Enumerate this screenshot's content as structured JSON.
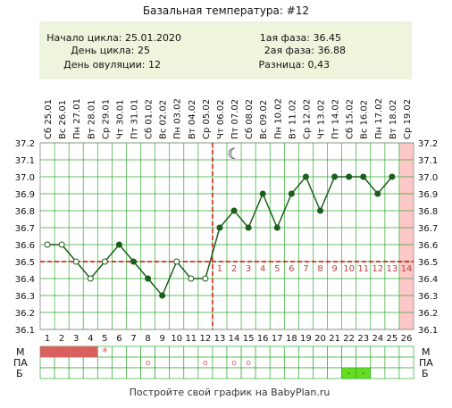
{
  "title": "Базальная температура: #12",
  "info": {
    "cycle_start": "Начало цикла: 25.01.2020",
    "cycle_day": "День цикла: 25",
    "ovulation_day": "День овуляции: 12",
    "phase1": "1ая фаза: 36.45",
    "phase2": "2ая фаза: 36.88",
    "difference": "Разница: 0,43"
  },
  "footer": "Постройте свой график на BabyPlan.ru",
  "side_labels": {
    "m": "М",
    "pa": "ПА",
    "b": "Б"
  },
  "moon_symbol": "☾",
  "colors": {
    "line": "#1a5e1a",
    "threshold": "#dd0000",
    "grid": "#33aa33",
    "info_bg": "#eef5dc",
    "pink": "#ffc8c8",
    "menses": "#d96060",
    "marker": "#d96060",
    "b_green": "#66dd22"
  },
  "chart_data": {
    "type": "line",
    "title": "Базальная температура: #12",
    "categories": [
      "Сб 25.01",
      "Вс 26.01",
      "Пн 27.01",
      "Вт 28.01",
      "Ср 29.01",
      "Чт 30.01",
      "Пт 31.01",
      "Сб 01.02",
      "Вс 02.02",
      "Пн 03.02",
      "Вт 04.02",
      "Ср 05.02",
      "Чт 06.02",
      "Пт 07.02",
      "Сб 08.02",
      "Вс 09.02",
      "Пн 10.02",
      "Вт 11.02",
      "Ср 12.02",
      "Чт 13.02",
      "Пт 14.02",
      "Сб 15.02",
      "Вс 16.02",
      "Пн 17.02",
      "Вт 18.02",
      "Ср 19.02"
    ],
    "day_numbers": [
      1,
      2,
      3,
      4,
      5,
      6,
      7,
      8,
      9,
      10,
      11,
      12,
      13,
      14,
      15,
      16,
      17,
      18,
      19,
      20,
      21,
      22,
      23,
      24,
      25,
      26
    ],
    "values": [
      36.6,
      36.6,
      36.5,
      36.4,
      36.5,
      36.6,
      36.5,
      36.4,
      36.3,
      36.5,
      36.4,
      36.4,
      36.7,
      36.8,
      36.7,
      36.9,
      36.7,
      36.9,
      37.0,
      36.8,
      37.0,
      37.0,
      37.0,
      36.9,
      37.0,
      null
    ],
    "ylim": [
      36.1,
      37.2
    ],
    "yticks": [
      36.1,
      36.2,
      36.3,
      36.4,
      36.5,
      36.6,
      36.7,
      36.8,
      36.9,
      37.0,
      37.1,
      37.2
    ],
    "ytick_labels": [
      "36.1",
      "36.2",
      "36.3",
      "36.4",
      "36.5",
      "36.6",
      "36.7",
      "36.8",
      "36.9",
      "37.0",
      "37.1",
      "37.2"
    ],
    "threshold": 36.5,
    "ovulation_day": 12,
    "current_day": 26,
    "open_point_days": [
      1,
      2,
      3,
      4,
      5,
      10,
      11,
      12
    ],
    "filled_point_days": [
      6,
      7,
      8,
      9,
      13,
      14,
      15,
      16,
      17,
      18,
      19,
      20,
      21,
      22,
      23,
      24,
      25
    ],
    "luteal_labels": [
      "1",
      "2",
      "3",
      "4",
      "5",
      "6",
      "7",
      "8",
      "9",
      "10",
      "11",
      "12",
      "13",
      "14"
    ],
    "luteal_start_day": 13,
    "moon_day": 14,
    "grid": true,
    "menses_days": [
      1,
      2,
      3,
      4
    ],
    "menses_star_day": 5,
    "menses_star": "*",
    "pa_days": [
      8,
      12,
      14,
      15
    ],
    "pa_symbol": "o",
    "b_days": [
      22,
      23
    ],
    "b_symbol": "-"
  }
}
